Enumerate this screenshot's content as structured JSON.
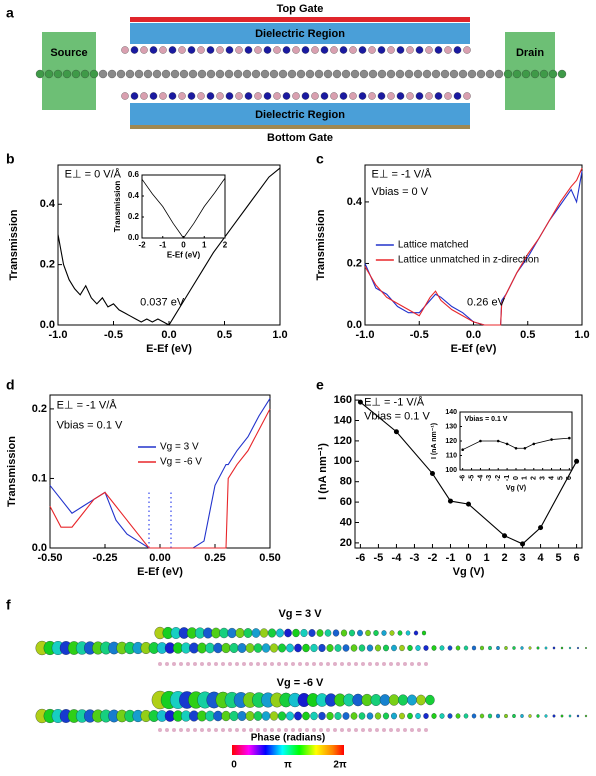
{
  "panel_labels": [
    "a",
    "b",
    "c",
    "d",
    "e",
    "f"
  ],
  "diagram": {
    "top_gate": "Top Gate",
    "dielectric_top": "Dielectric Region",
    "source": "Source",
    "drain": "Drain",
    "dielectric_bottom": "Dielectric Region",
    "bottom_gate": "Bottom Gate"
  },
  "chart_data": [
    {
      "type": "line",
      "xlabel": "E-Ef (eV)",
      "ylabel": "Transmission",
      "annotations": [
        "E⊥ = 0 V/Å",
        "0.037 eV"
      ],
      "xlim": [
        -1,
        1
      ],
      "xticks": [
        {
          "value": -1,
          "label": "-1.0"
        },
        -0.5,
        {
          "value": 0,
          "label": "0.0"
        },
        0.5,
        {
          "value": 1,
          "label": "1.0"
        }
      ],
      "ylim": [
        0,
        0.53
      ],
      "yticks": [
        {
          "value": 0,
          "label": "0.0"
        },
        0.2,
        0.4
      ],
      "x": [
        -1.0,
        -0.95,
        -0.9,
        -0.85,
        -0.8,
        -0.75,
        -0.7,
        -0.65,
        -0.6,
        -0.55,
        -0.5,
        -0.45,
        -0.4,
        -0.35,
        -0.3,
        -0.25,
        -0.2,
        -0.15,
        -0.1,
        -0.05,
        0.0,
        0.05,
        0.1,
        0.2,
        0.3,
        0.4,
        0.5,
        0.6,
        0.7,
        0.8,
        0.9,
        1.0
      ],
      "series": [
        {
          "color": "#000000",
          "values": [
            0.3,
            0.2,
            0.15,
            0.12,
            0.1,
            0.13,
            0.09,
            0.07,
            0.09,
            0.06,
            0.07,
            0.05,
            0.04,
            0.03,
            0.02,
            0.01,
            0.02,
            0.01,
            0.02,
            0.01,
            0.0,
            0.03,
            0.06,
            0.12,
            0.18,
            0.24,
            0.29,
            0.34,
            0.39,
            0.44,
            0.49,
            0.52
          ]
        }
      ]
    },
    {
      "type": "line",
      "xlabel": "E-Ef (eV)",
      "ylabel": "Transmission",
      "xlim": [
        -2,
        2
      ],
      "xticks": [
        -2,
        -1,
        0,
        1,
        2
      ],
      "ylim": [
        0,
        0.6
      ],
      "yticks": [
        {
          "value": 0,
          "label": "0.0"
        },
        0.2,
        0.4,
        0.6
      ],
      "x": [
        -2,
        -1.5,
        -1,
        -0.5,
        0,
        0.5,
        1,
        1.5,
        2
      ],
      "series": [
        {
          "color": "#000000",
          "values": [
            0.56,
            0.42,
            0.3,
            0.14,
            0.0,
            0.14,
            0.3,
            0.43,
            0.57
          ]
        }
      ]
    },
    {
      "type": "line",
      "xlabel": "E-Ef (eV)",
      "ylabel": "Transmission",
      "annotations": [
        "E⊥ = -1 V/Å",
        "Vbias = 0 V",
        "0.26 eV"
      ],
      "xlim": [
        -1,
        1
      ],
      "xticks": [
        {
          "value": -1,
          "label": "-1.0"
        },
        -0.5,
        {
          "value": 0,
          "label": "0.0"
        },
        0.5,
        {
          "value": 1,
          "label": "1.0"
        }
      ],
      "ylim": [
        0,
        0.52
      ],
      "yticks": [
        {
          "value": 0,
          "label": "0.0"
        },
        0.2,
        0.4
      ],
      "x": [
        -1.0,
        -0.9,
        -0.8,
        -0.7,
        -0.6,
        -0.5,
        -0.4,
        -0.35,
        -0.3,
        -0.2,
        -0.1,
        0.0,
        0.1,
        0.2,
        0.25,
        0.26,
        0.3,
        0.4,
        0.5,
        0.6,
        0.7,
        0.8,
        0.9,
        0.95,
        1.0
      ],
      "series": [
        {
          "name": "Lattice matched",
          "color": "#2233cc",
          "values": [
            0.2,
            0.12,
            0.1,
            0.06,
            0.04,
            0.04,
            0.08,
            0.1,
            0.09,
            0.06,
            0.04,
            0.01,
            0.0,
            0.0,
            0.0,
            0.08,
            0.1,
            0.17,
            0.22,
            0.28,
            0.34,
            0.39,
            0.44,
            0.4,
            0.5
          ]
        },
        {
          "name": "Lattice unmatched in z-direction",
          "color": "#e8262a",
          "values": [
            0.19,
            0.13,
            0.09,
            0.07,
            0.05,
            0.03,
            0.09,
            0.11,
            0.08,
            0.05,
            0.03,
            0.01,
            0.0,
            0.0,
            0.0,
            0.07,
            0.1,
            0.17,
            0.23,
            0.28,
            0.34,
            0.4,
            0.45,
            0.47,
            0.51
          ]
        }
      ]
    },
    {
      "type": "line",
      "xlabel": "E-Ef (eV)",
      "ylabel": "Transmission",
      "annotations": [
        "E⊥ = -1 V/Å",
        "Vbias = 0.1 V"
      ],
      "xlim": [
        -0.5,
        0.5
      ],
      "xticks": [
        {
          "value": -0.5,
          "label": "-0.50"
        },
        {
          "value": -0.25,
          "label": "-0.25"
        },
        {
          "value": 0,
          "label": "0.00"
        },
        {
          "value": 0.25,
          "label": "0.25"
        },
        {
          "value": 0.5,
          "label": "0.50"
        }
      ],
      "ylim": [
        0,
        0.22
      ],
      "yticks": [
        {
          "value": 0,
          "label": "0.0"
        },
        0.1,
        0.2
      ],
      "vlines": [
        -0.05,
        0.05
      ],
      "x": [
        -0.5,
        -0.45,
        -0.4,
        -0.35,
        -0.3,
        -0.25,
        -0.2,
        -0.15,
        -0.1,
        -0.05,
        0.0,
        0.1,
        0.15,
        0.2,
        0.25,
        0.3,
        0.31,
        0.35,
        0.4,
        0.45,
        0.5
      ],
      "series": [
        {
          "name": "Vg = 3 V",
          "color": "#2233cc",
          "values": [
            0.09,
            0.07,
            0.05,
            0.06,
            0.07,
            0.08,
            0.04,
            0.02,
            0.01,
            0.0,
            0.0,
            0.0,
            0.0,
            0.01,
            0.09,
            0.12,
            0.12,
            0.14,
            0.16,
            0.19,
            0.215
          ]
        },
        {
          "name": "Vg = -6 V",
          "color": "#e8262a",
          "values": [
            0.06,
            0.03,
            0.03,
            0.05,
            0.07,
            0.08,
            0.06,
            0.04,
            0.02,
            0.0,
            0.0,
            0.0,
            0.0,
            0.0,
            0.0,
            0.0,
            0.1,
            0.12,
            0.14,
            0.17,
            0.2
          ]
        }
      ]
    },
    {
      "type": "line",
      "markers": true,
      "xlabel": "Vg (V)",
      "ylabel": "I (nA nm⁻¹)",
      "annotations": [
        "E⊥ = -1 V/Å",
        "Vbias = 0.1 V"
      ],
      "xlim": [
        -6.3,
        6.3
      ],
      "xticks": [
        -6,
        -5,
        -4,
        -3,
        -2,
        -1,
        0,
        1,
        2,
        3,
        4,
        5,
        6
      ],
      "ylim": [
        15,
        165
      ],
      "yticks": [
        20,
        40,
        60,
        80,
        100,
        120,
        140,
        160
      ],
      "x": [
        -6,
        -4,
        -2,
        -1,
        0,
        2,
        3,
        4,
        6
      ],
      "series": [
        {
          "color": "#000000",
          "values": [
            158,
            129,
            88,
            61,
            58,
            27,
            19,
            35,
            100
          ]
        }
      ]
    },
    {
      "type": "line",
      "markers": true,
      "xlabel": "Vg (V)",
      "ylabel": "I (nA nm⁻¹)",
      "annotations": [
        "Vbias = 0.1 V"
      ],
      "xlim": [
        -6.3,
        6.3
      ],
      "xticks": [
        -6,
        -5,
        -4,
        -3,
        -2,
        -1,
        0,
        1,
        2,
        3,
        4,
        5,
        6
      ],
      "ylim": [
        100,
        140
      ],
      "yticks": [
        100,
        110,
        120,
        130,
        140
      ],
      "x": [
        -6,
        -4,
        -2,
        -1,
        0,
        1,
        2,
        4,
        6
      ],
      "series": [
        {
          "color": "#000000",
          "values": [
            114,
            120,
            120,
            118,
            115,
            115,
            118,
            121,
            122
          ]
        }
      ]
    }
  ],
  "phase_figure": {
    "labels": [
      "Vg = 3 V",
      "Vg = -6 V"
    ],
    "colorbar_title": "Phase (radians)",
    "colorbar_ticks": [
      "0",
      "π",
      "2π"
    ]
  }
}
